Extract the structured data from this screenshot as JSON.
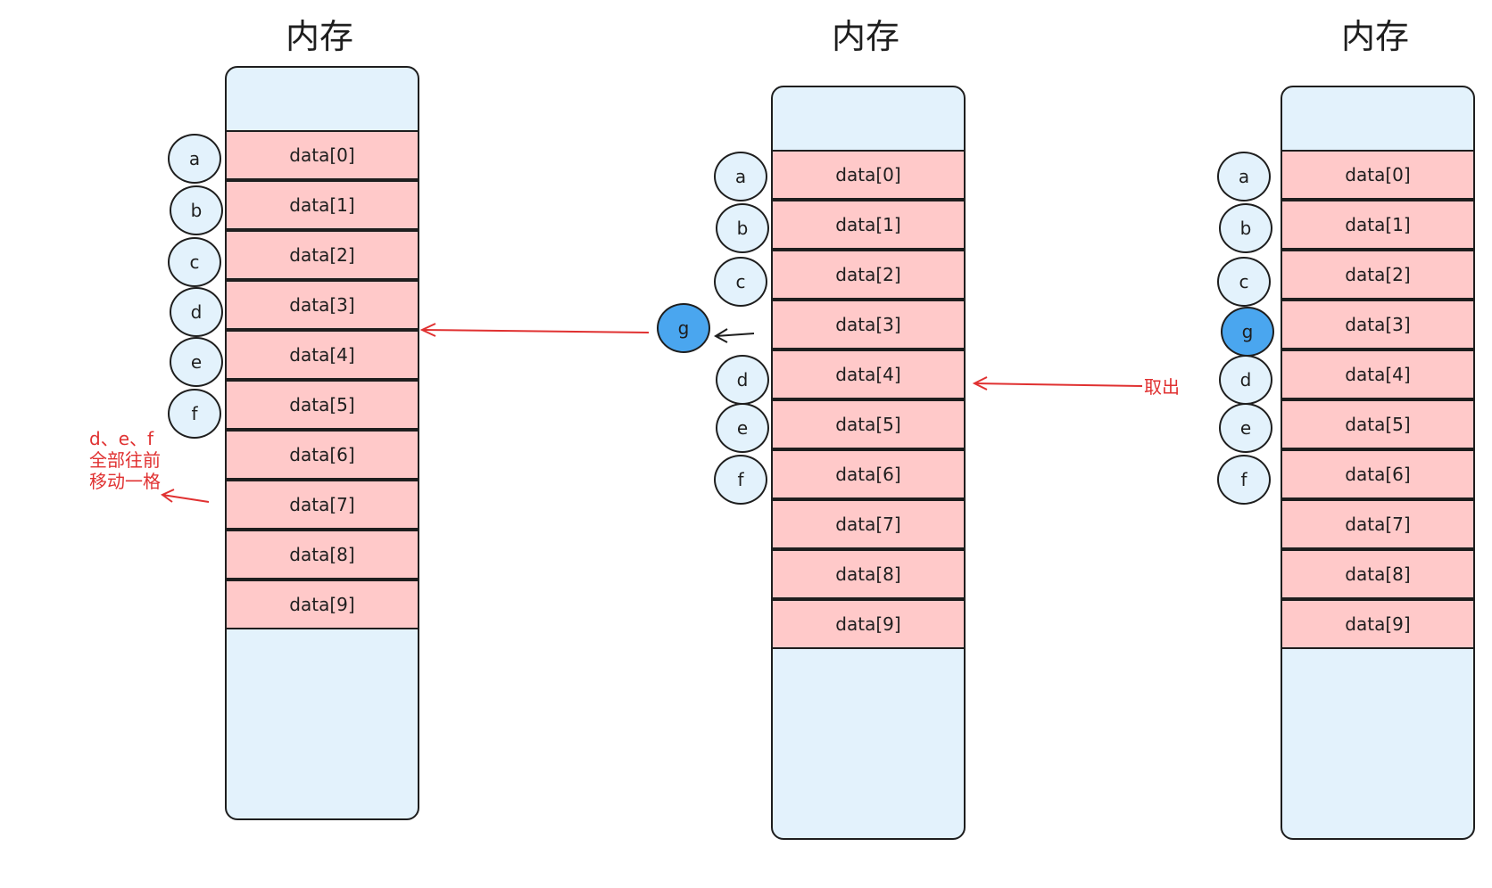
{
  "panels": [
    {
      "title": "内存",
      "cells": [
        "data[0]",
        "data[1]",
        "data[2]",
        "data[3]",
        "data[4]",
        "data[5]",
        "data[6]",
        "data[7]",
        "data[8]",
        "data[9]"
      ],
      "nodes": [
        "a",
        "b",
        "c",
        "d",
        "e",
        "f"
      ]
    },
    {
      "title": "内存",
      "cells": [
        "data[0]",
        "data[1]",
        "data[2]",
        "data[3]",
        "data[4]",
        "data[5]",
        "data[6]",
        "data[7]",
        "data[8]",
        "data[9]"
      ],
      "nodes": [
        "a",
        "b",
        "c",
        "d",
        "e",
        "f"
      ],
      "moving_node": "g"
    },
    {
      "title": "内存",
      "cells": [
        "data[0]",
        "data[1]",
        "data[2]",
        "data[3]",
        "data[4]",
        "data[5]",
        "data[6]",
        "data[7]",
        "data[8]",
        "data[9]"
      ],
      "nodes": [
        "a",
        "b",
        "c",
        "g",
        "d",
        "e",
        "f"
      ]
    }
  ],
  "annotations": {
    "shift_note": [
      "d、e、f",
      "全部往前",
      "移动一格"
    ],
    "take_out": "取出"
  },
  "colors": {
    "memory_fill": "#e3f2fc",
    "cell_fill": "#ffc9c9",
    "node_fill": "#e3f2fc",
    "highlight_node_fill": "#4aa6ef",
    "annotation": "#e03131",
    "stroke": "#1e1e1e"
  }
}
